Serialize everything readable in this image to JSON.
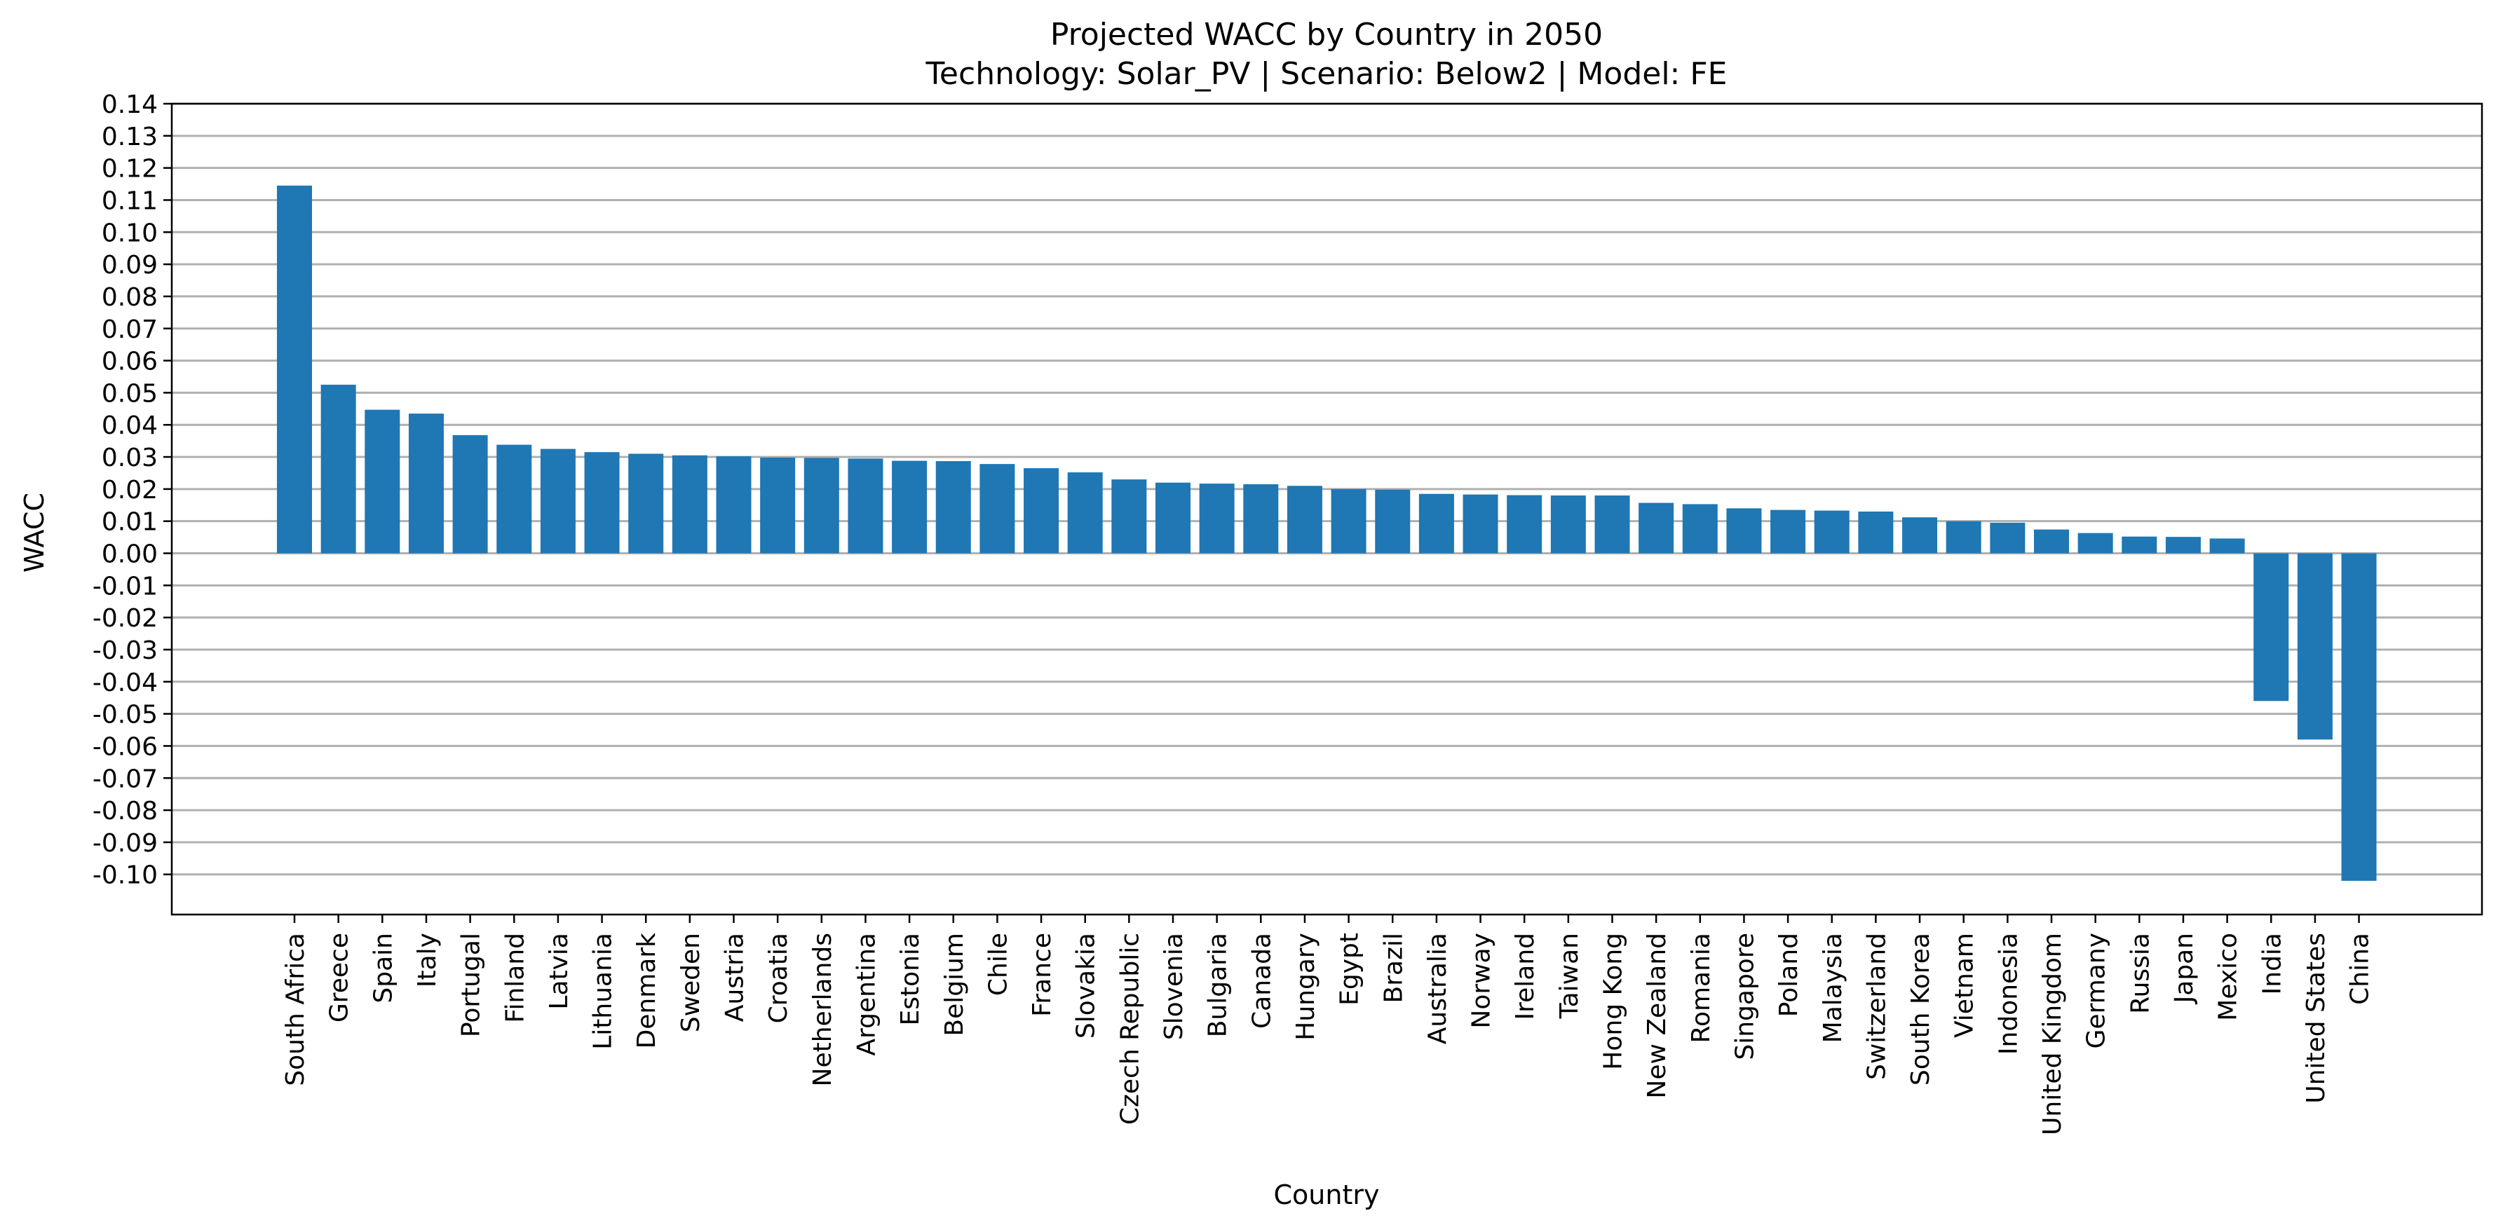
{
  "chart_data": {
    "type": "bar",
    "title": "Projected WACC by Country in 2050",
    "subtitle": "Technology: Solar_PV | Scenario: Below2 | Model: FE",
    "xlabel": "Country",
    "ylabel": "WACC",
    "ylim": [
      -0.1125,
      0.14
    ],
    "yticks": [
      "0.14",
      "0.13",
      "0.12",
      "0.11",
      "0.10",
      "0.09",
      "0.08",
      "0.07",
      "0.06",
      "0.05",
      "0.04",
      "0.03",
      "0.02",
      "0.01",
      "0.00",
      "-0.01",
      "-0.02",
      "-0.03",
      "-0.04",
      "-0.05",
      "-0.06",
      "-0.07",
      "-0.08",
      "-0.09",
      "-0.10"
    ],
    "grid": "y",
    "bar_color": "#1f77b4",
    "categories": [
      "South Africa",
      "Greece",
      "Spain",
      "Italy",
      "Portugal",
      "Finland",
      "Latvia",
      "Lithuania",
      "Denmark",
      "Sweden",
      "Austria",
      "Croatia",
      "Netherlands",
      "Argentina",
      "Estonia",
      "Belgium",
      "Chile",
      "France",
      "Slovakia",
      "Czech Republic",
      "Slovenia",
      "Bulgaria",
      "Canada",
      "Hungary",
      "Egypt",
      "Brazil",
      "Australia",
      "Norway",
      "Ireland",
      "Taiwan",
      "Hong Kong",
      "New Zealand",
      "Romania",
      "Singapore",
      "Poland",
      "Malaysia",
      "Switzerland",
      "South Korea",
      "Vietnam",
      "Indonesia",
      "United Kingdom",
      "Germany",
      "Russia",
      "Japan",
      "Mexico",
      "India",
      "United States",
      "China"
    ],
    "values": [
      0.1145,
      0.0525,
      0.0447,
      0.0435,
      0.0368,
      0.0338,
      0.0325,
      0.0315,
      0.031,
      0.0305,
      0.0302,
      0.0298,
      0.0297,
      0.0295,
      0.0288,
      0.0287,
      0.0278,
      0.0265,
      0.0252,
      0.023,
      0.022,
      0.0217,
      0.0215,
      0.021,
      0.02,
      0.0198,
      0.0185,
      0.0183,
      0.0181,
      0.018,
      0.018,
      0.0157,
      0.0153,
      0.014,
      0.0135,
      0.0133,
      0.013,
      0.0112,
      0.01,
      0.0095,
      0.0074,
      0.0063,
      0.0052,
      0.0051,
      0.0046,
      -0.046,
      -0.058,
      -0.102
    ]
  }
}
